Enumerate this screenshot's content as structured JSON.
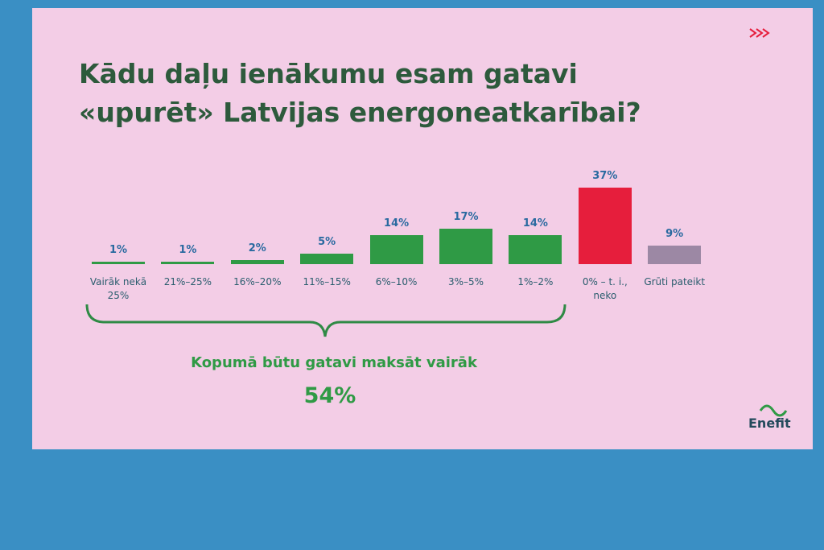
{
  "chart_data": {
    "type": "bar",
    "title": "Kādu daļu ienākumu esam gatavi «upurēt» Latvijas energoneatkarībai?",
    "categories": [
      "Vairāk nekā 25%",
      "21%–25%",
      "16%–20%",
      "11%–15%",
      "6%–10%",
      "3%–5%",
      "1%–2%",
      "0% – t. i., neko",
      "Grūti pateikt"
    ],
    "values": [
      1,
      1,
      2,
      5,
      14,
      17,
      14,
      37,
      9
    ],
    "value_labels": [
      "1%",
      "1%",
      "2%",
      "5%",
      "14%",
      "17%",
      "14%",
      "37%",
      "9%"
    ],
    "colors": [
      "#2f9a45",
      "#2f9a45",
      "#2f9a45",
      "#2f9a45",
      "#2f9a45",
      "#2f9a45",
      "#2f9a45",
      "#e61e3c",
      "#9c88a4"
    ],
    "annotation": "Kopumā būtu gatavi maksāt vairāk",
    "annotation_value": "54%",
    "logo": "Enefit"
  }
}
